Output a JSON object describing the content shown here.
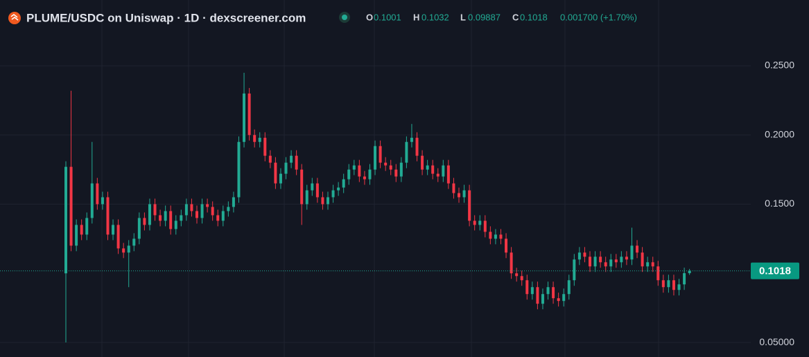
{
  "header": {
    "title": "PLUME/USDC on Uniswap · 1D · dexscreener.com",
    "ohlc": [
      {
        "label": "O",
        "value": "0.1001"
      },
      {
        "label": "H",
        "value": "0.1032"
      },
      {
        "label": "L",
        "value": "0.09887"
      },
      {
        "label": "C",
        "value": "0.1018"
      }
    ],
    "change": "0.001700 (+1.70%)"
  },
  "chart_data": {
    "type": "candlestick",
    "up_color": "#22ab94",
    "down_color": "#f23645",
    "ylim": [
      0.0395,
      0.2976
    ],
    "yticks": [
      {
        "value": 0.05,
        "label": "0.05000"
      },
      {
        "value": 0.15,
        "label": "0.1500"
      },
      {
        "value": 0.2,
        "label": "0.2000"
      },
      {
        "value": 0.25,
        "label": "0.2500"
      }
    ],
    "grid": true,
    "last_price": 0.1018,
    "open": [
      0.1,
      0.177,
      0.12,
      0.135,
      0.128,
      0.14,
      0.165,
      0.15,
      0.155,
      0.128,
      0.135,
      0.118,
      0.115,
      0.12,
      0.125,
      0.14,
      0.135,
      0.15,
      0.142,
      0.138,
      0.145,
      0.132,
      0.138,
      0.142,
      0.15,
      0.145,
      0.14,
      0.15,
      0.148,
      0.142,
      0.138,
      0.145,
      0.148,
      0.155,
      0.195,
      0.23,
      0.2,
      0.195,
      0.198,
      0.185,
      0.18,
      0.165,
      0.172,
      0.18,
      0.185,
      0.175,
      0.15,
      0.16,
      0.165,
      0.155,
      0.15,
      0.155,
      0.16,
      0.162,
      0.168,
      0.175,
      0.178,
      0.17,
      0.168,
      0.175,
      0.192,
      0.18,
      0.178,
      0.175,
      0.17,
      0.18,
      0.195,
      0.198,
      0.185,
      0.175,
      0.178,
      0.172,
      0.17,
      0.178,
      0.165,
      0.158,
      0.155,
      0.16,
      0.138,
      0.135,
      0.138,
      0.13,
      0.125,
      0.128,
      0.125,
      0.115,
      0.1,
      0.098,
      0.095,
      0.085,
      0.09,
      0.078,
      0.085,
      0.09,
      0.082,
      0.08,
      0.085,
      0.095,
      0.11,
      0.115,
      0.112,
      0.105,
      0.112,
      0.108,
      0.105,
      0.11,
      0.108,
      0.112,
      0.11,
      0.12,
      0.115,
      0.105,
      0.108,
      0.105,
      0.095,
      0.09,
      0.095,
      0.088,
      0.092,
      0.1001
    ],
    "high": [
      0.181,
      0.232,
      0.139,
      0.139,
      0.144,
      0.195,
      0.169,
      0.159,
      0.159,
      0.139,
      0.139,
      0.122,
      0.124,
      0.129,
      0.144,
      0.144,
      0.154,
      0.154,
      0.146,
      0.149,
      0.149,
      0.142,
      0.146,
      0.154,
      0.154,
      0.149,
      0.154,
      0.154,
      0.152,
      0.146,
      0.149,
      0.152,
      0.159,
      0.199,
      0.245,
      0.234,
      0.204,
      0.202,
      0.202,
      0.189,
      0.184,
      0.176,
      0.184,
      0.189,
      0.189,
      0.179,
      0.164,
      0.169,
      0.169,
      0.159,
      0.159,
      0.164,
      0.166,
      0.172,
      0.179,
      0.182,
      0.182,
      0.174,
      0.179,
      0.196,
      0.196,
      0.184,
      0.182,
      0.179,
      0.184,
      0.199,
      0.208,
      0.202,
      0.189,
      0.182,
      0.182,
      0.176,
      0.182,
      0.182,
      0.169,
      0.162,
      0.164,
      0.164,
      0.142,
      0.142,
      0.142,
      0.134,
      0.132,
      0.132,
      0.129,
      0.119,
      0.104,
      0.102,
      0.099,
      0.094,
      0.094,
      0.089,
      0.094,
      0.094,
      0.086,
      0.089,
      0.099,
      0.114,
      0.119,
      0.119,
      0.116,
      0.116,
      0.116,
      0.112,
      0.114,
      0.114,
      0.116,
      0.116,
      0.133,
      0.124,
      0.119,
      0.112,
      0.112,
      0.109,
      0.099,
      0.099,
      0.099,
      0.096,
      0.1041,
      0.1032
    ],
    "low": [
      0.05,
      0.116,
      0.116,
      0.124,
      0.124,
      0.136,
      0.146,
      0.146,
      0.124,
      0.124,
      0.114,
      0.111,
      0.09,
      0.116,
      0.121,
      0.131,
      0.131,
      0.138,
      0.134,
      0.134,
      0.128,
      0.128,
      0.134,
      0.138,
      0.141,
      0.136,
      0.136,
      0.144,
      0.138,
      0.134,
      0.134,
      0.141,
      0.144,
      0.151,
      0.191,
      0.196,
      0.191,
      0.191,
      0.181,
      0.176,
      0.161,
      0.161,
      0.168,
      0.176,
      0.171,
      0.135,
      0.146,
      0.156,
      0.151,
      0.146,
      0.146,
      0.151,
      0.156,
      0.158,
      0.164,
      0.171,
      0.166,
      0.164,
      0.164,
      0.171,
      0.176,
      0.174,
      0.171,
      0.166,
      0.166,
      0.176,
      0.191,
      0.181,
      0.171,
      0.171,
      0.168,
      0.166,
      0.166,
      0.161,
      0.154,
      0.151,
      0.151,
      0.134,
      0.131,
      0.131,
      0.126,
      0.121,
      0.121,
      0.121,
      0.111,
      0.096,
      0.094,
      0.091,
      0.081,
      0.081,
      0.074,
      0.074,
      0.081,
      0.078,
      0.076,
      0.076,
      0.081,
      0.091,
      0.106,
      0.108,
      0.101,
      0.101,
      0.104,
      0.101,
      0.101,
      0.104,
      0.104,
      0.106,
      0.106,
      0.111,
      0.101,
      0.101,
      0.101,
      0.091,
      0.086,
      0.086,
      0.084,
      0.084,
      0.088,
      0.09887
    ],
    "close": [
      0.177,
      0.12,
      0.135,
      0.128,
      0.14,
      0.165,
      0.15,
      0.155,
      0.128,
      0.135,
      0.118,
      0.115,
      0.12,
      0.125,
      0.14,
      0.135,
      0.15,
      0.142,
      0.138,
      0.145,
      0.132,
      0.138,
      0.142,
      0.15,
      0.145,
      0.14,
      0.15,
      0.148,
      0.142,
      0.138,
      0.145,
      0.148,
      0.155,
      0.195,
      0.23,
      0.2,
      0.195,
      0.198,
      0.185,
      0.18,
      0.165,
      0.172,
      0.18,
      0.185,
      0.175,
      0.15,
      0.16,
      0.165,
      0.155,
      0.15,
      0.155,
      0.16,
      0.162,
      0.168,
      0.175,
      0.178,
      0.17,
      0.168,
      0.175,
      0.192,
      0.18,
      0.178,
      0.175,
      0.17,
      0.18,
      0.195,
      0.198,
      0.185,
      0.175,
      0.178,
      0.172,
      0.17,
      0.178,
      0.165,
      0.158,
      0.155,
      0.16,
      0.138,
      0.135,
      0.138,
      0.13,
      0.125,
      0.128,
      0.125,
      0.115,
      0.1,
      0.098,
      0.095,
      0.085,
      0.09,
      0.078,
      0.085,
      0.09,
      0.082,
      0.08,
      0.085,
      0.095,
      0.11,
      0.115,
      0.112,
      0.105,
      0.112,
      0.108,
      0.105,
      0.11,
      0.108,
      0.112,
      0.11,
      0.12,
      0.115,
      0.105,
      0.108,
      0.105,
      0.095,
      0.09,
      0.095,
      0.088,
      0.092,
      0.1001,
      0.1018
    ]
  }
}
